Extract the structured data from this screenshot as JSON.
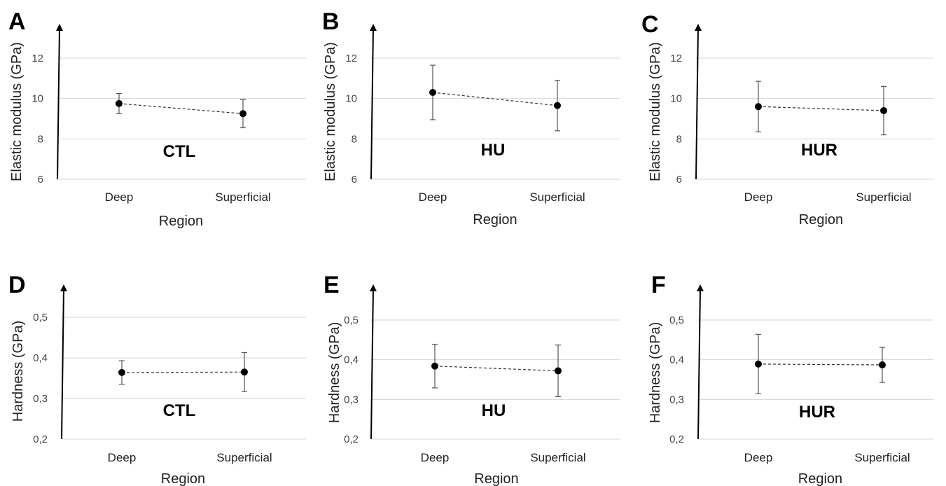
{
  "chart_data": [
    {
      "panel": "A",
      "type": "scatter",
      "group_label": "CTL",
      "ylabel": "Elastic modulus (GPa)",
      "xlabel": "Region",
      "categories": [
        "Deep",
        "Superficial"
      ],
      "values": [
        9.75,
        9.25
      ],
      "errors": [
        0.5,
        0.7
      ],
      "ylim": [
        6,
        12
      ],
      "yticks": [
        6,
        8,
        10,
        12
      ],
      "ytick_labels": [
        "6",
        "8",
        "10",
        "12"
      ],
      "grid": true,
      "connector": "dashed"
    },
    {
      "panel": "B",
      "type": "scatter",
      "group_label": "HU",
      "ylabel": "Elastic modulus (GPa)",
      "xlabel": "Region",
      "categories": [
        "Deep",
        "Superficial"
      ],
      "values": [
        10.3,
        9.65
      ],
      "errors": [
        1.35,
        1.25
      ],
      "ylim": [
        6,
        12
      ],
      "yticks": [
        6,
        8,
        10,
        12
      ],
      "ytick_labels": [
        "6",
        "8",
        "10",
        "12"
      ],
      "grid": true,
      "connector": "dashed"
    },
    {
      "panel": "C",
      "type": "scatter",
      "group_label": "HUR",
      "ylabel": "Elastic modulus (GPa)",
      "xlabel": "Region",
      "categories": [
        "Deep",
        "Superficial"
      ],
      "values": [
        9.6,
        9.4
      ],
      "errors": [
        1.25,
        1.2
      ],
      "ylim": [
        6,
        12
      ],
      "yticks": [
        6,
        8,
        10,
        12
      ],
      "ytick_labels": [
        "6",
        "8",
        "10",
        "12"
      ],
      "grid": true,
      "connector": "dashed"
    },
    {
      "panel": "D",
      "type": "scatter",
      "group_label": "CTL",
      "ylabel": "Hardness (GPa)",
      "xlabel": "Region",
      "categories": [
        "Deep",
        "Superficial"
      ],
      "values": [
        0.364,
        0.365
      ],
      "errors": [
        0.029,
        0.048
      ],
      "ylim": [
        0.2,
        0.5
      ],
      "yticks": [
        0.2,
        0.3,
        0.4,
        0.5
      ],
      "ytick_labels": [
        "0,2",
        "0,3",
        "0,4",
        "0,5"
      ],
      "grid": true,
      "connector": "dashed"
    },
    {
      "panel": "E",
      "type": "scatter",
      "group_label": "HU",
      "ylabel": "Hardness (GPa)",
      "xlabel": "Region",
      "categories": [
        "Deep",
        "Superficial"
      ],
      "values": [
        0.384,
        0.372
      ],
      "errors": [
        0.055,
        0.065
      ],
      "ylim": [
        0.2,
        0.5
      ],
      "yticks": [
        0.2,
        0.3,
        0.4,
        0.5
      ],
      "ytick_labels": [
        "0,2",
        "0,3",
        "0,4",
        "0,5"
      ],
      "grid": true,
      "connector": "dashed"
    },
    {
      "panel": "F",
      "type": "scatter",
      "group_label": "HUR",
      "ylabel": "Hardness (GPa)",
      "xlabel": "Region",
      "categories": [
        "Deep",
        "Superficial"
      ],
      "values": [
        0.389,
        0.387
      ],
      "errors": [
        0.075,
        0.044
      ],
      "ylim": [
        0.2,
        0.5
      ],
      "yticks": [
        0.2,
        0.3,
        0.4,
        0.5
      ],
      "ytick_labels": [
        "0,2",
        "0,3",
        "0,4",
        "0,5"
      ],
      "grid": true,
      "connector": "dashed"
    }
  ]
}
